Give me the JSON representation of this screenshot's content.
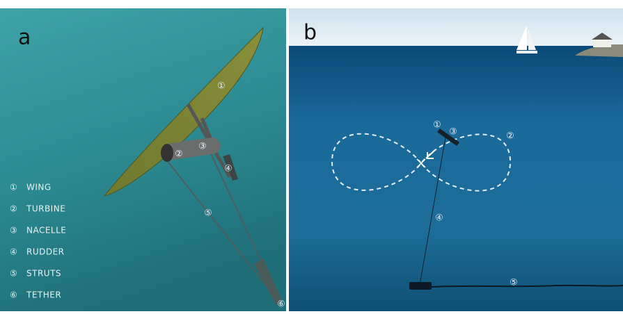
{
  "panel_a": {
    "label": "a",
    "callouts": [
      "①",
      "②",
      "③",
      "④",
      "⑤",
      "⑥"
    ],
    "legend": [
      {
        "marker": "①",
        "label": "WING"
      },
      {
        "marker": "②",
        "label": "TURBINE"
      },
      {
        "marker": "③",
        "label": "NACELLE"
      },
      {
        "marker": "④",
        "label": "RUDDER"
      },
      {
        "marker": "⑤",
        "label": "STRUTS"
      },
      {
        "marker": "⑥",
        "label": "TETHER"
      }
    ]
  },
  "panel_b": {
    "label": "b",
    "callouts": [
      "①",
      "③",
      "②",
      "④",
      "⑤"
    ]
  }
}
